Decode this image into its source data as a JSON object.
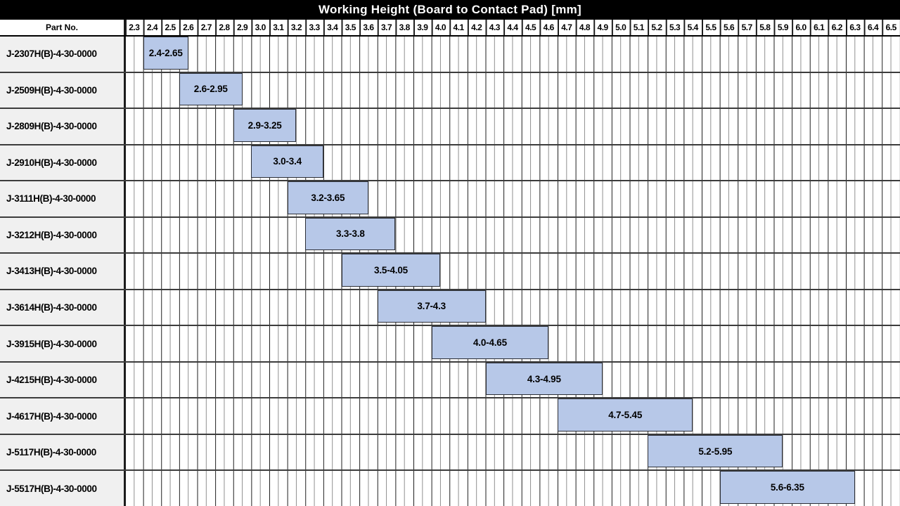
{
  "title": "Working Height (Board to Contact Pad) [mm]",
  "table": {
    "part_no_header": "Part No."
  },
  "colors": {
    "bar_fill": "#b7c8e8",
    "bar_border": "#2b2e36",
    "grid_major": "#1c1c1c",
    "grid_minor": "#8f8f8f",
    "row_divider": "#3c3c3c",
    "part_col_bg": "#f0f0f0",
    "header_bg": "#ffffff",
    "title_bg": "#000000",
    "title_color": "#ffffff"
  },
  "chart_data": {
    "type": "bar",
    "subtype": "horizontal-range",
    "title": "Working Height (Board to Contact Pad) [mm]",
    "xlim": [
      2.3,
      6.6
    ],
    "x_major_step": 0.1,
    "x_minor_step": 0.05,
    "grid": true,
    "x_tick_labels": [
      "2.3",
      "2.4",
      "2.5",
      "2.6",
      "2.7",
      "2.8",
      "2.9",
      "3.0",
      "3.1",
      "3.2",
      "3.3",
      "3.4",
      "3.5",
      "3.6",
      "3.7",
      "3.8",
      "3.9",
      "4.0",
      "4.1",
      "4.2",
      "4.3",
      "4.4",
      "4.5",
      "4.6",
      "4.7",
      "4.8",
      "4.9",
      "5.0",
      "5.1",
      "5.2",
      "5.3",
      "5.4",
      "5.5",
      "5.6",
      "5.7",
      "5.8",
      "5.9",
      "6.0",
      "6.1",
      "6.2",
      "6.3",
      "6.4",
      "6.5"
    ],
    "categories": [
      "J-2307H(B)-4-30-0000",
      "J-2509H(B)-4-30-0000",
      "J-2809H(B)-4-30-0000",
      "J-2910H(B)-4-30-0000",
      "J-3111H(B)-4-30-0000",
      "J-3212H(B)-4-30-0000",
      "J-3413H(B)-4-30-0000",
      "J-3614H(B)-4-30-0000",
      "J-3915H(B)-4-30-0000",
      "J-4215H(B)-4-30-0000",
      "J-4617H(B)-4-30-0000",
      "J-5117H(B)-4-30-0000",
      "J-5517H(B)-4-30-0000"
    ],
    "ranges": [
      [
        2.4,
        2.65
      ],
      [
        2.6,
        2.95
      ],
      [
        2.9,
        3.25
      ],
      [
        3.0,
        3.4
      ],
      [
        3.2,
        3.65
      ],
      [
        3.3,
        3.8
      ],
      [
        3.5,
        4.05
      ],
      [
        3.7,
        4.3
      ],
      [
        4.0,
        4.65
      ],
      [
        4.3,
        4.95
      ],
      [
        4.7,
        5.45
      ],
      [
        5.2,
        5.95
      ],
      [
        5.6,
        6.35
      ]
    ],
    "range_labels": [
      "2.4-2.65",
      "2.6-2.95",
      "2.9-3.25",
      "3.0-3.4",
      "3.2-3.65",
      "3.3-3.8",
      "3.5-4.05",
      "3.7-4.3",
      "4.0-4.65",
      "4.3-4.95",
      "4.7-5.45",
      "5.2-5.95",
      "5.6-6.35"
    ]
  }
}
